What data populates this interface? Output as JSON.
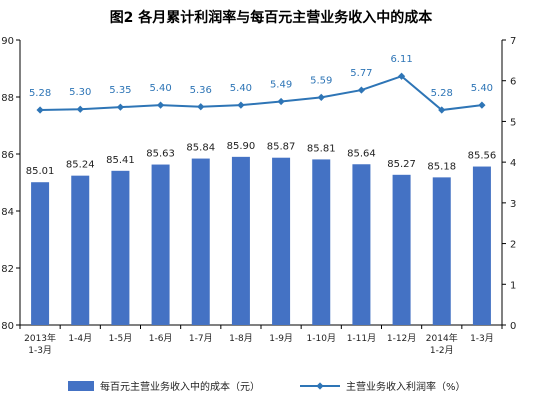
{
  "chart_data": {
    "type": "bar",
    "title": "图2  各月累计利润率与每百元主营业务收入中的成本",
    "categories": [
      [
        "2013年",
        "1-3月"
      ],
      [
        "1-4月"
      ],
      [
        "1-5月"
      ],
      [
        "1-6月"
      ],
      [
        "1-7月"
      ],
      [
        "1-8月"
      ],
      [
        "1-9月"
      ],
      [
        "1-10月"
      ],
      [
        "1-11月"
      ],
      [
        "1-12月"
      ],
      [
        "2014年",
        "1-2月"
      ],
      [
        "1-3月"
      ]
    ],
    "series": [
      {
        "name": "每百元主营业务收入中的成本（元）",
        "type": "bar",
        "axis": "left",
        "color": "#4472c4",
        "values": [
          85.01,
          85.24,
          85.41,
          85.63,
          85.84,
          85.9,
          85.87,
          85.81,
          85.64,
          85.27,
          85.18,
          85.56
        ],
        "labels": [
          "85.01",
          "85.24",
          "85.41",
          "85.63",
          "85.84",
          "85.90",
          "85.87",
          "85.81",
          "85.64",
          "85.27",
          "85.18",
          "85.56"
        ]
      },
      {
        "name": "主营业务收入利润率（%）",
        "type": "line",
        "axis": "right",
        "color": "#2e75b6",
        "values": [
          5.28,
          5.3,
          5.35,
          5.4,
          5.36,
          5.4,
          5.49,
          5.59,
          5.77,
          6.11,
          5.28,
          5.4
        ],
        "labels": [
          "5.28",
          "5.30",
          "5.35",
          "5.40",
          "5.36",
          "5.40",
          "5.49",
          "5.59",
          "5.77",
          "6.11",
          "5.28",
          "5.40"
        ]
      }
    ],
    "y_left": {
      "min": 80,
      "max": 90,
      "ticks": [
        "80",
        "82",
        "84",
        "86",
        "88",
        "90"
      ]
    },
    "y_right": {
      "min": 0,
      "max": 7,
      "ticks": [
        "0",
        "1",
        "2",
        "3",
        "4",
        "5",
        "6",
        "7"
      ]
    },
    "legend_position": "bottom",
    "grid": false
  }
}
